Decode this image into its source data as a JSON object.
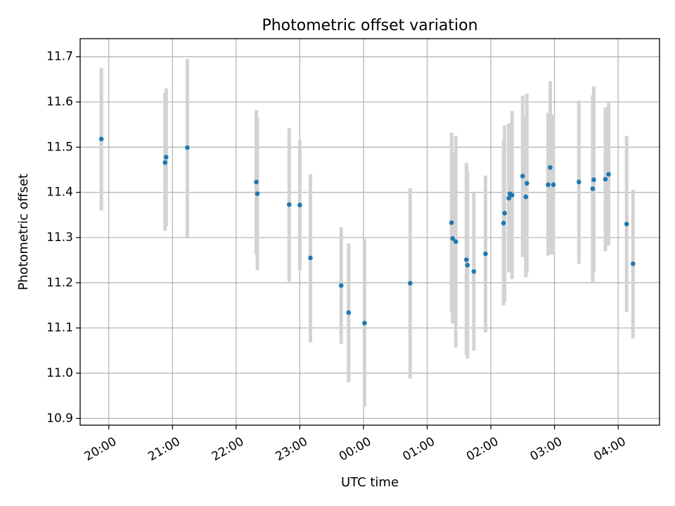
{
  "chart_data": {
    "type": "scatter",
    "title": "Photometric offset variation",
    "xlabel": "UTC time",
    "ylabel": "Photometric offset",
    "x_reference_date": "",
    "xlim": [
      "19:33",
      "04:39"
    ],
    "ylim": [
      10.885,
      11.74
    ],
    "x_ticks": [
      "20:00",
      "21:00",
      "22:00",
      "23:00",
      "00:00",
      "01:00",
      "02:00",
      "03:00",
      "04:00"
    ],
    "y_ticks": [
      "10.9",
      "11.0",
      "11.1",
      "11.2",
      "11.3",
      "11.4",
      "11.5",
      "11.6",
      "11.7"
    ],
    "grid": true,
    "legend": "none",
    "colors": {
      "points": "#1f77b4",
      "error_bars": "#d3d3d3"
    },
    "points": [
      {
        "t": "19:53",
        "y": 11.518,
        "lo": 11.36,
        "hi": 11.675
      },
      {
        "t": "20:53",
        "y": 11.466,
        "lo": 11.315,
        "hi": 11.62
      },
      {
        "t": "20:54",
        "y": 11.478,
        "lo": 11.325,
        "hi": 11.63
      },
      {
        "t": "21:14",
        "y": 11.499,
        "lo": 11.3,
        "hi": 11.695
      },
      {
        "t": "22:19",
        "y": 11.423,
        "lo": 11.262,
        "hi": 11.582
      },
      {
        "t": "22:20",
        "y": 11.397,
        "lo": 11.228,
        "hi": 11.565
      },
      {
        "t": "22:50",
        "y": 11.373,
        "lo": 11.203,
        "hi": 11.542
      },
      {
        "t": "23:00",
        "y": 11.372,
        "lo": 11.228,
        "hi": 11.515
      },
      {
        "t": "23:10",
        "y": 11.255,
        "lo": 11.068,
        "hi": 11.44
      },
      {
        "t": "23:39",
        "y": 11.194,
        "lo": 11.065,
        "hi": 11.323
      },
      {
        "t": "23:46",
        "y": 11.134,
        "lo": 10.98,
        "hi": 11.287
      },
      {
        "t": "00:01",
        "y": 11.111,
        "lo": 10.925,
        "hi": 11.297
      },
      {
        "t": "00:44",
        "y": 11.199,
        "lo": 10.988,
        "hi": 11.409
      },
      {
        "t": "01:23",
        "y": 11.333,
        "lo": 11.135,
        "hi": 11.532
      },
      {
        "t": "01:24",
        "y": 11.298,
        "lo": 11.11,
        "hi": 11.487
      },
      {
        "t": "01:27",
        "y": 11.291,
        "lo": 11.057,
        "hi": 11.525
      },
      {
        "t": "01:37",
        "y": 11.251,
        "lo": 11.04,
        "hi": 11.465
      },
      {
        "t": "01:38",
        "y": 11.239,
        "lo": 11.032,
        "hi": 11.447
      },
      {
        "t": "01:44",
        "y": 11.225,
        "lo": 11.05,
        "hi": 11.4
      },
      {
        "t": "01:55",
        "y": 11.264,
        "lo": 11.09,
        "hi": 11.437
      },
      {
        "t": "02:12",
        "y": 11.332,
        "lo": 11.15,
        "hi": 11.515
      },
      {
        "t": "02:13",
        "y": 11.354,
        "lo": 11.158,
        "hi": 11.548
      },
      {
        "t": "02:17",
        "y": 11.387,
        "lo": 11.223,
        "hi": 11.552
      },
      {
        "t": "02:18",
        "y": 11.397,
        "lo": 11.242,
        "hi": 11.553
      },
      {
        "t": "02:20",
        "y": 11.394,
        "lo": 11.208,
        "hi": 11.58
      },
      {
        "t": "02:30",
        "y": 11.436,
        "lo": 11.257,
        "hi": 11.614
      },
      {
        "t": "02:33",
        "y": 11.39,
        "lo": 11.212,
        "hi": 11.568
      },
      {
        "t": "02:34",
        "y": 11.42,
        "lo": 11.222,
        "hi": 11.618
      },
      {
        "t": "02:54",
        "y": 11.417,
        "lo": 11.26,
        "hi": 11.576
      },
      {
        "t": "02:56",
        "y": 11.455,
        "lo": 11.263,
        "hi": 11.646
      },
      {
        "t": "02:59",
        "y": 11.417,
        "lo": 11.262,
        "hi": 11.572
      },
      {
        "t": "03:23",
        "y": 11.423,
        "lo": 11.242,
        "hi": 11.603
      },
      {
        "t": "03:36",
        "y": 11.408,
        "lo": 11.2,
        "hi": 11.615
      },
      {
        "t": "03:37",
        "y": 11.428,
        "lo": 11.222,
        "hi": 11.634
      },
      {
        "t": "03:48",
        "y": 11.429,
        "lo": 11.27,
        "hi": 11.588
      },
      {
        "t": "03:51",
        "y": 11.44,
        "lo": 11.282,
        "hi": 11.598
      },
      {
        "t": "04:08",
        "y": 11.33,
        "lo": 11.135,
        "hi": 11.525
      },
      {
        "t": "04:14",
        "y": 11.242,
        "lo": 11.077,
        "hi": 11.406
      }
    ]
  }
}
